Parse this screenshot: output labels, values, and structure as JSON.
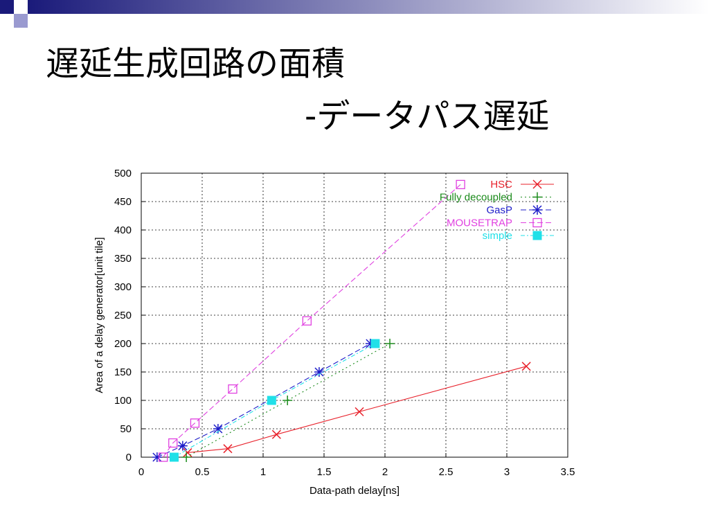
{
  "slide": {
    "title": "遅延生成回路の面積",
    "subtitle": "-データパス遅延"
  },
  "chart_data": {
    "type": "line",
    "title": "",
    "xlabel": "Data-path delay[ns]",
    "ylabel": "Area of a delay generator[unit tile]",
    "xlim": [
      0,
      3.5
    ],
    "ylim": [
      0,
      500
    ],
    "xticks": [
      "0",
      "0.5",
      "1",
      "1.5",
      "2",
      "2.5",
      "3",
      "3.5"
    ],
    "yticks": [
      "0",
      "50",
      "100",
      "150",
      "200",
      "250",
      "300",
      "350",
      "400",
      "450",
      "500"
    ],
    "grid": true,
    "legend": "top-right",
    "series": [
      {
        "name": "HSC",
        "color": "#e8202a",
        "marker": "x",
        "line": "solid",
        "x": [
          0.38,
          0.71,
          1.11,
          1.79,
          3.16
        ],
        "y": [
          8,
          15,
          40,
          80,
          160
        ]
      },
      {
        "name": "Fully decoupled",
        "color": "#1a8a1a",
        "marker": "+",
        "line": "dotted",
        "x": [
          0.37,
          1.2,
          2.04
        ],
        "y": [
          0,
          100,
          200
        ]
      },
      {
        "name": "GasP",
        "color": "#1c1cc8",
        "marker": "star",
        "line": "dashed",
        "x": [
          0.13,
          0.34,
          0.63,
          1.46,
          1.88
        ],
        "y": [
          0,
          20,
          50,
          150,
          200
        ]
      },
      {
        "name": "MOUSETRAP",
        "color": "#e040e0",
        "marker": "square-open",
        "line": "dashed",
        "x": [
          0.18,
          0.26,
          0.44,
          0.75,
          1.36,
          2.62
        ],
        "y": [
          0,
          25,
          60,
          120,
          240,
          480
        ]
      },
      {
        "name": "simple",
        "color": "#20e0e8",
        "marker": "square-filled",
        "line": "dashdot",
        "x": [
          0.27,
          1.07,
          1.92
        ],
        "y": [
          0,
          100,
          200
        ]
      }
    ]
  }
}
